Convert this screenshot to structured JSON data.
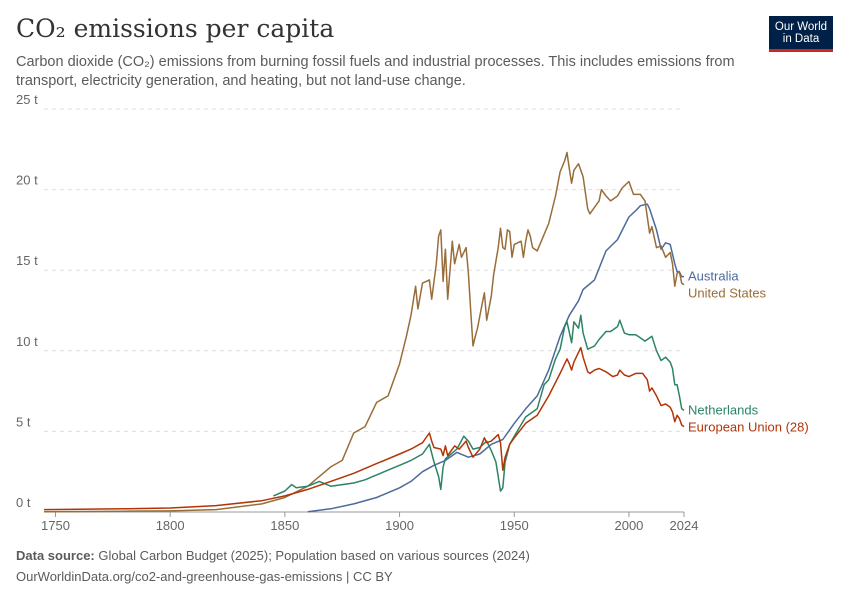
{
  "header": {
    "title": "CO₂ emissions per capita",
    "subtitle": "Carbon dioxide (CO₂) emissions from burning fossil fuels and industrial processes. This includes emissions from transport, electricity generation, and heating, but not land-use change."
  },
  "logo": {
    "line1": "Our World",
    "line2": "in Data"
  },
  "footer": {
    "source_label": "Data source:",
    "source_text": "Global Carbon Budget (2025); Population based on various sources (2024)",
    "url_text": "OurWorldinData.org/co2-and-greenhouse-gas-emissions | CC BY"
  },
  "chart_data": {
    "type": "line",
    "title": "CO₂ emissions per capita",
    "xlim": [
      1745,
      2024
    ],
    "ylim": [
      0,
      25
    ],
    "x_ticks": [
      {
        "value": 1750,
        "label": "1750"
      },
      {
        "value": 1800,
        "label": "1800"
      },
      {
        "value": 1850,
        "label": "1850"
      },
      {
        "value": 1900,
        "label": "1900"
      },
      {
        "value": 1950,
        "label": "1950"
      },
      {
        "value": 2000,
        "label": "2000"
      },
      {
        "value": 2024,
        "label": "2024"
      }
    ],
    "y_ticks": [
      {
        "value": 0,
        "label": "0 t"
      },
      {
        "value": 5,
        "label": "5 t"
      },
      {
        "value": 10,
        "label": "10 t"
      },
      {
        "value": 15,
        "label": "15 t"
      },
      {
        "value": 20,
        "label": "20 t"
      },
      {
        "value": 25,
        "label": "25 t"
      }
    ],
    "grid": true,
    "legend": "right-of-lines",
    "series": [
      {
        "name": "Australia",
        "color": "#4c6a9c",
        "points": [
          [
            1860,
            0.02
          ],
          [
            1870,
            0.2
          ],
          [
            1880,
            0.5
          ],
          [
            1890,
            0.9
          ],
          [
            1900,
            1.5
          ],
          [
            1905,
            1.9
          ],
          [
            1910,
            2.5
          ],
          [
            1915,
            2.9
          ],
          [
            1920,
            3.2
          ],
          [
            1925,
            3.7
          ],
          [
            1930,
            3.4
          ],
          [
            1935,
            3.6
          ],
          [
            1940,
            4.2
          ],
          [
            1945,
            4.5
          ],
          [
            1950,
            5.5
          ],
          [
            1955,
            6.4
          ],
          [
            1960,
            7.2
          ],
          [
            1965,
            8.8
          ],
          [
            1970,
            10.9
          ],
          [
            1974,
            12.2
          ],
          [
            1978,
            13.1
          ],
          [
            1980,
            13.8
          ],
          [
            1985,
            14.4
          ],
          [
            1990,
            16.2
          ],
          [
            1995,
            16.9
          ],
          [
            2000,
            18.3
          ],
          [
            2003,
            18.7
          ],
          [
            2005,
            19
          ],
          [
            2008,
            19.1
          ],
          [
            2009,
            18.8
          ],
          [
            2012,
            17.5
          ],
          [
            2014,
            16.3
          ],
          [
            2016,
            16.7
          ],
          [
            2018,
            16.6
          ],
          [
            2020,
            15.4
          ],
          [
            2021,
            14.9
          ],
          [
            2022,
            14.9
          ],
          [
            2023,
            14.6
          ],
          [
            2024,
            14.6
          ]
        ]
      },
      {
        "name": "United States",
        "color": "#996d39",
        "points": [
          [
            1745,
            0.02
          ],
          [
            1780,
            0.05
          ],
          [
            1800,
            0.07
          ],
          [
            1820,
            0.15
          ],
          [
            1840,
            0.5
          ],
          [
            1850,
            0.9
          ],
          [
            1860,
            1.6
          ],
          [
            1870,
            2.8
          ],
          [
            1875,
            3.2
          ],
          [
            1880,
            4.9
          ],
          [
            1885,
            5.3
          ],
          [
            1890,
            6.8
          ],
          [
            1895,
            7.2
          ],
          [
            1900,
            9.2
          ],
          [
            1903,
            10.9
          ],
          [
            1905,
            12.2
          ],
          [
            1907,
            14
          ],
          [
            1908,
            12.6
          ],
          [
            1910,
            14.2
          ],
          [
            1913,
            14.4
          ],
          [
            1914,
            13.2
          ],
          [
            1916,
            15.4
          ],
          [
            1917,
            17.1
          ],
          [
            1918,
            17.5
          ],
          [
            1919,
            14.3
          ],
          [
            1920,
            16.3
          ],
          [
            1921,
            13.2
          ],
          [
            1923,
            16.8
          ],
          [
            1924,
            15.4
          ],
          [
            1926,
            16.6
          ],
          [
            1927,
            15.8
          ],
          [
            1929,
            16.4
          ],
          [
            1930,
            14.8
          ],
          [
            1931,
            12.5
          ],
          [
            1932,
            10.3
          ],
          [
            1933,
            10.9
          ],
          [
            1934,
            11.4
          ],
          [
            1936,
            12.9
          ],
          [
            1937,
            13.6
          ],
          [
            1938,
            11.9
          ],
          [
            1940,
            13.4
          ],
          [
            1941,
            14.7
          ],
          [
            1943,
            16.4
          ],
          [
            1944,
            17.6
          ],
          [
            1945,
            16.4
          ],
          [
            1946,
            16.3
          ],
          [
            1947,
            17.5
          ],
          [
            1948,
            17.4
          ],
          [
            1949,
            15.8
          ],
          [
            1950,
            16.6
          ],
          [
            1953,
            16.8
          ],
          [
            1954,
            15.8
          ],
          [
            1955,
            16.8
          ],
          [
            1956,
            17.5
          ],
          [
            1957,
            17.1
          ],
          [
            1958,
            16.4
          ],
          [
            1960,
            16.2
          ],
          [
            1965,
            17.9
          ],
          [
            1968,
            19.6
          ],
          [
            1970,
            21.1
          ],
          [
            1972,
            21.8
          ],
          [
            1973,
            22.3
          ],
          [
            1974,
            21.3
          ],
          [
            1975,
            20.4
          ],
          [
            1976,
            21.2
          ],
          [
            1978,
            21.6
          ],
          [
            1980,
            20.8
          ],
          [
            1982,
            18.8
          ],
          [
            1983,
            18.5
          ],
          [
            1985,
            18.9
          ],
          [
            1987,
            19.3
          ],
          [
            1988,
            20
          ],
          [
            1990,
            19.6
          ],
          [
            1992,
            19.3
          ],
          [
            1995,
            19.6
          ],
          [
            1997,
            20.1
          ],
          [
            2000,
            20.5
          ],
          [
            2002,
            19.7
          ],
          [
            2005,
            19.7
          ],
          [
            2007,
            19.3
          ],
          [
            2009,
            17.3
          ],
          [
            2010,
            17.7
          ],
          [
            2012,
            16.4
          ],
          [
            2014,
            16.5
          ],
          [
            2016,
            15.8
          ],
          [
            2018,
            16.1
          ],
          [
            2019,
            15.4
          ],
          [
            2020,
            14
          ],
          [
            2021,
            14.8
          ],
          [
            2022,
            14.9
          ],
          [
            2023,
            14.2
          ],
          [
            2024,
            14.1
          ]
        ]
      },
      {
        "name": "Netherlands",
        "color": "#2c8465",
        "points": [
          [
            1845,
            1.0
          ],
          [
            1850,
            1.3
          ],
          [
            1853,
            1.7
          ],
          [
            1855,
            1.5
          ],
          [
            1860,
            1.6
          ],
          [
            1865,
            1.9
          ],
          [
            1870,
            1.6
          ],
          [
            1875,
            1.7
          ],
          [
            1880,
            1.8
          ],
          [
            1885,
            2.0
          ],
          [
            1890,
            2.3
          ],
          [
            1895,
            2.6
          ],
          [
            1900,
            2.9
          ],
          [
            1905,
            3.2
          ],
          [
            1910,
            3.6
          ],
          [
            1913,
            4.2
          ],
          [
            1915,
            3.1
          ],
          [
            1917,
            2.2
          ],
          [
            1918,
            1.4
          ],
          [
            1919,
            2.8
          ],
          [
            1920,
            3.3
          ],
          [
            1925,
            3.9
          ],
          [
            1928,
            4.7
          ],
          [
            1930,
            4.4
          ],
          [
            1932,
            3.9
          ],
          [
            1935,
            4.0
          ],
          [
            1938,
            4.4
          ],
          [
            1940,
            3.8
          ],
          [
            1942,
            3.1
          ],
          [
            1944,
            1.3
          ],
          [
            1945,
            1.5
          ],
          [
            1946,
            3.1
          ],
          [
            1948,
            4.2
          ],
          [
            1950,
            4.7
          ],
          [
            1955,
            5.9
          ],
          [
            1960,
            6.4
          ],
          [
            1963,
            7.9
          ],
          [
            1965,
            8.2
          ],
          [
            1968,
            9.5
          ],
          [
            1970,
            10.1
          ],
          [
            1972,
            11.5
          ],
          [
            1973,
            11.8
          ],
          [
            1975,
            10.5
          ],
          [
            1976,
            11.8
          ],
          [
            1978,
            11.4
          ],
          [
            1979,
            12.2
          ],
          [
            1980,
            11.1
          ],
          [
            1982,
            10.1
          ],
          [
            1985,
            10.3
          ],
          [
            1987,
            10.7
          ],
          [
            1990,
            11.2
          ],
          [
            1992,
            11.2
          ],
          [
            1995,
            11.5
          ],
          [
            1996,
            11.9
          ],
          [
            1998,
            11.1
          ],
          [
            2000,
            11.0
          ],
          [
            2003,
            11.0
          ],
          [
            2005,
            10.8
          ],
          [
            2007,
            10.6
          ],
          [
            2010,
            10.9
          ],
          [
            2012,
            10
          ],
          [
            2014,
            9.4
          ],
          [
            2016,
            9.6
          ],
          [
            2018,
            9.3
          ],
          [
            2019,
            8.9
          ],
          [
            2020,
            7.9
          ],
          [
            2021,
            7.9
          ],
          [
            2022,
            7.2
          ],
          [
            2023,
            6.4
          ],
          [
            2024,
            6.3
          ]
        ]
      },
      {
        "name": "European Union (28)",
        "color": "#b13507",
        "points": [
          [
            1745,
            0.15
          ],
          [
            1760,
            0.17
          ],
          [
            1780,
            0.2
          ],
          [
            1800,
            0.25
          ],
          [
            1820,
            0.4
          ],
          [
            1840,
            0.7
          ],
          [
            1850,
            1.0
          ],
          [
            1860,
            1.4
          ],
          [
            1870,
            1.9
          ],
          [
            1880,
            2.4
          ],
          [
            1890,
            3.0
          ],
          [
            1900,
            3.6
          ],
          [
            1905,
            3.9
          ],
          [
            1910,
            4.3
          ],
          [
            1913,
            4.9
          ],
          [
            1914,
            4.4
          ],
          [
            1915,
            4.0
          ],
          [
            1918,
            3.9
          ],
          [
            1919,
            3.5
          ],
          [
            1920,
            4.1
          ],
          [
            1921,
            3.5
          ],
          [
            1924,
            4.1
          ],
          [
            1926,
            3.9
          ],
          [
            1929,
            4.4
          ],
          [
            1930,
            4.0
          ],
          [
            1932,
            3.4
          ],
          [
            1935,
            3.9
          ],
          [
            1937,
            4.6
          ],
          [
            1938,
            4.3
          ],
          [
            1940,
            4.4
          ],
          [
            1943,
            4.8
          ],
          [
            1944,
            4.3
          ],
          [
            1945,
            2.6
          ],
          [
            1946,
            3.4
          ],
          [
            1948,
            4.2
          ],
          [
            1950,
            4.6
          ],
          [
            1955,
            5.5
          ],
          [
            1960,
            6.0
          ],
          [
            1965,
            7.2
          ],
          [
            1970,
            8.6
          ],
          [
            1973,
            9.5
          ],
          [
            1974,
            9.2
          ],
          [
            1975,
            8.8
          ],
          [
            1976,
            9.3
          ],
          [
            1979,
            10.2
          ],
          [
            1980,
            9.6
          ],
          [
            1982,
            8.7
          ],
          [
            1983,
            8.6
          ],
          [
            1985,
            8.8
          ],
          [
            1987,
            8.9
          ],
          [
            1990,
            8.7
          ],
          [
            1993,
            8.4
          ],
          [
            1995,
            8.5
          ],
          [
            1996,
            8.8
          ],
          [
            1998,
            8.5
          ],
          [
            2000,
            8.4
          ],
          [
            2003,
            8.6
          ],
          [
            2005,
            8.6
          ],
          [
            2006,
            8.6
          ],
          [
            2008,
            8.2
          ],
          [
            2009,
            7.5
          ],
          [
            2010,
            7.7
          ],
          [
            2012,
            7.2
          ],
          [
            2014,
            6.6
          ],
          [
            2016,
            6.7
          ],
          [
            2018,
            6.5
          ],
          [
            2019,
            6.2
          ],
          [
            2020,
            5.6
          ],
          [
            2021,
            6.0
          ],
          [
            2022,
            5.8
          ],
          [
            2023,
            5.4
          ],
          [
            2024,
            5.3
          ]
        ]
      }
    ]
  }
}
